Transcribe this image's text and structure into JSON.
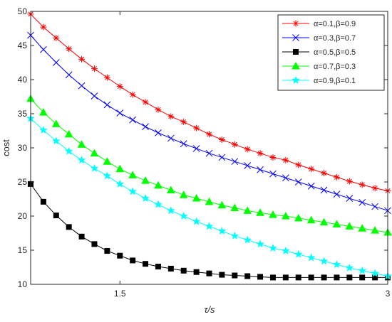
{
  "chart_data": {
    "type": "line",
    "xlabel": "τ/s",
    "ylabel": "cost",
    "xlim": [
      1.0,
      3.0
    ],
    "ylim": [
      10,
      50
    ],
    "xticks": [
      1.5,
      3
    ],
    "xtick_labels": [
      "1.5",
      "3"
    ],
    "yticks": [
      10,
      15,
      20,
      25,
      30,
      35,
      40,
      45,
      50
    ],
    "ytick_labels": [
      "10",
      "15",
      "20",
      "25",
      "30",
      "35",
      "40",
      "45",
      "50"
    ],
    "legend_position": "top-right",
    "grid": false,
    "x": [
      1.0,
      1.0714,
      1.1429,
      1.2143,
      1.2857,
      1.3571,
      1.4286,
      1.5,
      1.5714,
      1.6429,
      1.7143,
      1.7857,
      1.8571,
      1.9286,
      2.0,
      2.0714,
      2.1429,
      2.2143,
      2.2857,
      2.3571,
      2.4286,
      2.5,
      2.5714,
      2.6429,
      2.7143,
      2.7857,
      2.8571,
      2.9286,
      3.0
    ],
    "series": [
      {
        "name": "α=0.1,β=0.9",
        "color": "#ff0000",
        "marker": "asterisk",
        "values": [
          49.6,
          47.7,
          46.1,
          44.5,
          43.0,
          41.6,
          40.3,
          39.0,
          37.8,
          36.7,
          35.6,
          34.6,
          33.8,
          32.9,
          32.0,
          31.2,
          30.5,
          29.8,
          29.2,
          28.6,
          28.2,
          27.5,
          26.9,
          26.3,
          25.7,
          25.1,
          24.6,
          24.1,
          23.7
        ]
      },
      {
        "name": "α=0.3,β=0.7",
        "color": "#0000ff",
        "marker": "x",
        "values": [
          46.5,
          44.4,
          42.5,
          40.7,
          39.1,
          37.6,
          36.3,
          35.1,
          34.1,
          33.1,
          32.2,
          31.4,
          30.6,
          29.9,
          29.2,
          28.6,
          28.0,
          27.4,
          26.8,
          26.2,
          25.6,
          25.0,
          24.4,
          23.8,
          23.2,
          22.6,
          22.0,
          21.4,
          20.8
        ]
      },
      {
        "name": "α=0.5,β=0.5",
        "color": "#000000",
        "marker": "square",
        "values": [
          24.7,
          22.1,
          20.1,
          18.4,
          17.0,
          15.9,
          14.9,
          14.2,
          13.5,
          13.0,
          12.6,
          12.3,
          12.0,
          11.8,
          11.6,
          11.4,
          11.3,
          11.2,
          11.1,
          11.0,
          11.0,
          11.0,
          11.0,
          11.0,
          11.0,
          11.0,
          11.0,
          11.0,
          11.0
        ]
      },
      {
        "name": "α=0.7,β=0.3",
        "color": "#00ff00",
        "marker": "triangle",
        "values": [
          37.2,
          35.2,
          33.5,
          32.0,
          30.5,
          29.2,
          28.0,
          26.9,
          26.0,
          25.2,
          24.5,
          23.8,
          23.1,
          22.6,
          22.1,
          21.6,
          21.2,
          20.8,
          20.5,
          20.2,
          20.0,
          19.7,
          19.4,
          19.1,
          18.8,
          18.5,
          18.2,
          17.9,
          17.6
        ]
      },
      {
        "name": "α=0.9,β=0.1",
        "color": "#00ffff",
        "marker": "star",
        "values": [
          34.3,
          32.6,
          31.0,
          29.5,
          28.2,
          27.0,
          25.9,
          24.7,
          23.6,
          22.6,
          21.7,
          20.8,
          20.0,
          19.2,
          18.5,
          17.8,
          17.1,
          16.5,
          15.9,
          15.3,
          14.9,
          14.4,
          13.9,
          13.4,
          12.9,
          12.4,
          12.0,
          11.6,
          11.2
        ]
      }
    ]
  }
}
